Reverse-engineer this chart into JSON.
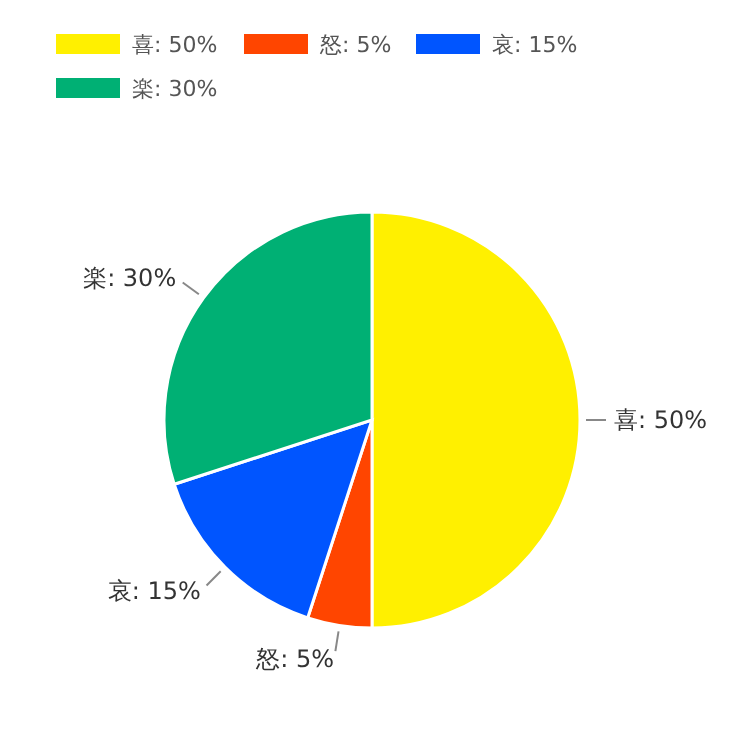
{
  "chart_data": {
    "type": "pie",
    "categories": [
      "喜",
      "怒",
      "哀",
      "楽"
    ],
    "values": [
      50,
      5,
      15,
      30
    ],
    "colors": [
      "#fff000",
      "#ff4500",
      "#0055ff",
      "#00b074"
    ],
    "value_labels": [
      "50%",
      "5%",
      "15%",
      "30%"
    ],
    "legend": "top left"
  }
}
